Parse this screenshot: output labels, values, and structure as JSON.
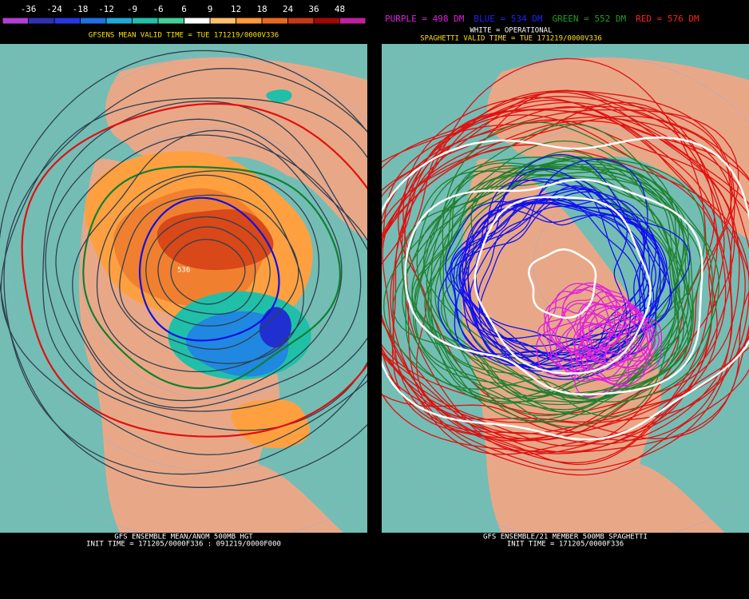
{
  "colorbar": {
    "labels": [
      -36,
      -24,
      -18,
      -12,
      -9,
      -6,
      6,
      9,
      12,
      18,
      24,
      36,
      48
    ],
    "colors": [
      "#b040d0",
      "#3030b0",
      "#2838e0",
      "#2070e0",
      "#20a8d8",
      "#20c0a8",
      "#40d098",
      "#ffffff",
      "#ffc070",
      "#ff9838",
      "#e86820",
      "#c83818",
      "#a00808",
      "#c020a0"
    ]
  },
  "left_panel": {
    "title": "GFSENS MEAN VALID TIME = TUE 171219/0000V336",
    "contour_label": "536",
    "footer": [
      "GFS ENSEMBLE MEAN/ANOM 500MB HGT",
      "INIT TIME = 171205/0000F336 : 091219/0000F000"
    ]
  },
  "right_panel": {
    "legend": [
      {
        "text": "PURPLE = 498 DM",
        "color": "#e020e0"
      },
      {
        "text": "BLUE = 534 DM",
        "color": "#2020ff"
      },
      {
        "text": "GREEN = 552 DM",
        "color": "#20a020"
      },
      {
        "text": "RED = 576 DM",
        "color": "#ff2020"
      }
    ],
    "operational": "WHITE = OPERATIONAL",
    "title": "SPAGHETTI VALID TIME = TUE 171219/0000V336",
    "footer": [
      "GFS ENSEMBLE/21 MEMBER 500MB SPAGHETTI",
      "INIT TIME = 171205/0000F336"
    ]
  }
}
